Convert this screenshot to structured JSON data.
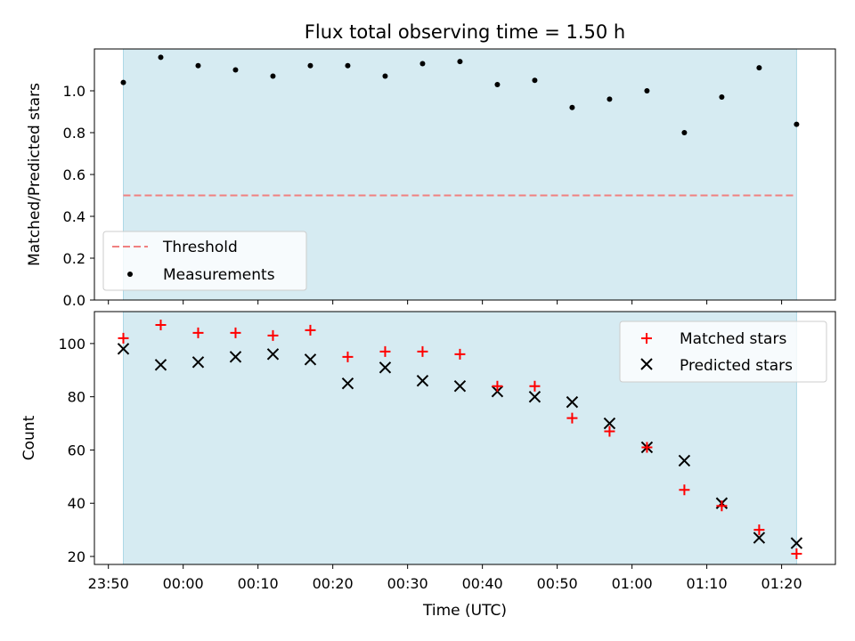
{
  "title": "Flux total observing time = 1.50 h",
  "chart_data": [
    {
      "type": "scatter",
      "panel": "top",
      "title": "Flux total observing time = 1.50 h",
      "ylabel": "Matched/Predicted stars",
      "ylim": [
        0.0,
        1.2
      ],
      "yticks": [
        "0.0",
        "0.2",
        "0.4",
        "0.6",
        "0.8",
        "1.0"
      ],
      "legend_position": "lower-left",
      "shaded_range": [
        "23:52",
        "01:22"
      ],
      "shade_color": "#add8e6",
      "threshold": {
        "name": "Threshold",
        "value": 0.5,
        "color": "#f08080",
        "style": "dashed"
      },
      "series": [
        {
          "name": "Measurements",
          "color": "#000000",
          "marker": "dot",
          "x": [
            "23:52",
            "23:57",
            "00:02",
            "00:07",
            "00:12",
            "00:17",
            "00:22",
            "00:27",
            "00:32",
            "00:37",
            "00:42",
            "00:47",
            "00:52",
            "00:57",
            "01:02",
            "01:07",
            "01:12",
            "01:17",
            "01:22"
          ],
          "y": [
            1.04,
            1.16,
            1.12,
            1.1,
            1.07,
            1.12,
            1.12,
            1.07,
            1.13,
            1.14,
            1.03,
            1.05,
            0.92,
            0.96,
            1.0,
            0.8,
            0.97,
            1.11,
            0.84
          ]
        }
      ]
    },
    {
      "type": "scatter",
      "panel": "bottom",
      "xlabel": "Time (UTC)",
      "ylabel": "Count",
      "ylim": [
        17,
        112
      ],
      "yticks": [
        "20",
        "40",
        "60",
        "80",
        "100"
      ],
      "xticks": [
        "23:50",
        "00:00",
        "00:10",
        "00:20",
        "00:30",
        "00:40",
        "00:50",
        "01:00",
        "01:10",
        "01:20"
      ],
      "legend_position": "upper-right",
      "shaded_range": [
        "23:52",
        "01:22"
      ],
      "shade_color": "#add8e6",
      "series": [
        {
          "name": "Matched stars",
          "color": "#ff0000",
          "marker": "plus",
          "x": [
            "23:52",
            "23:57",
            "00:02",
            "00:07",
            "00:12",
            "00:17",
            "00:22",
            "00:27",
            "00:32",
            "00:37",
            "00:42",
            "00:47",
            "00:52",
            "00:57",
            "01:02",
            "01:07",
            "01:12",
            "01:17",
            "01:22"
          ],
          "y": [
            102,
            107,
            104,
            104,
            103,
            105,
            95,
            97,
            97,
            96,
            84,
            84,
            72,
            67,
            61,
            45,
            39,
            30,
            21
          ]
        },
        {
          "name": "Predicted stars",
          "color": "#000000",
          "marker": "x",
          "x": [
            "23:52",
            "23:57",
            "00:02",
            "00:07",
            "00:12",
            "00:17",
            "00:22",
            "00:27",
            "00:32",
            "00:37",
            "00:42",
            "00:47",
            "00:52",
            "00:57",
            "01:02",
            "01:07",
            "01:12",
            "01:17",
            "01:22"
          ],
          "y": [
            98,
            92,
            93,
            95,
            96,
            94,
            85,
            91,
            86,
            84,
            82,
            80,
            78,
            70,
            61,
            56,
            40,
            27,
            25
          ]
        }
      ]
    }
  ]
}
